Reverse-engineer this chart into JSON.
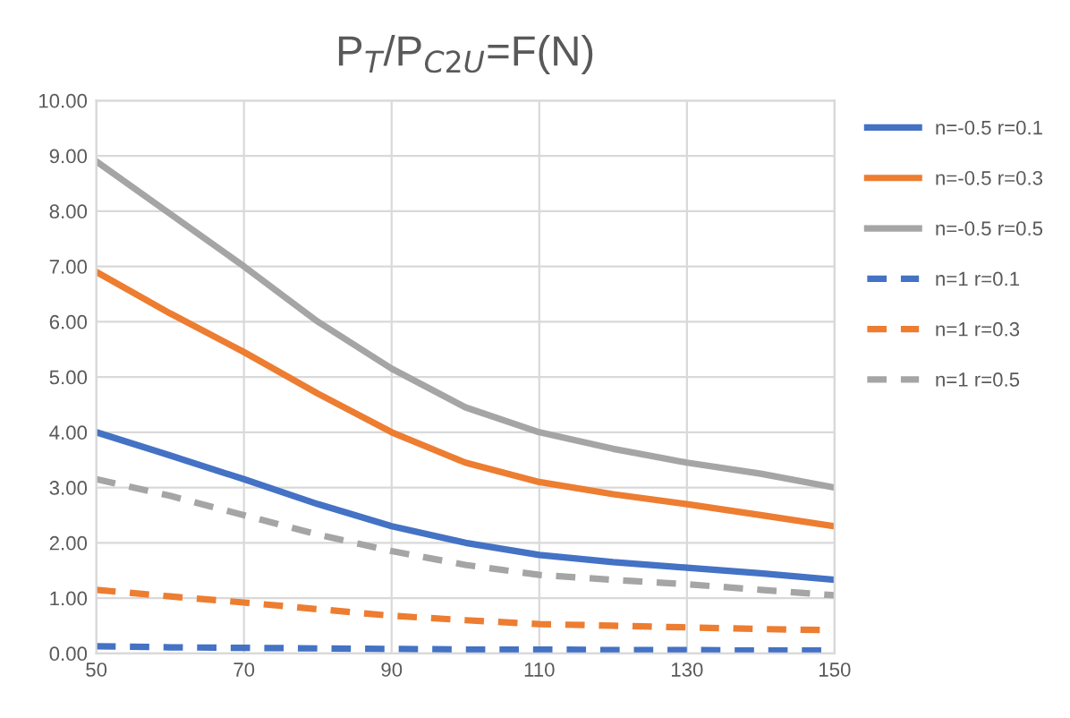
{
  "chart_data": {
    "type": "line",
    "title": "P$_{T}$/P$_{C2U}$=F(N)",
    "x": [
      50,
      60,
      70,
      80,
      90,
      100,
      110,
      120,
      130,
      140,
      150
    ],
    "series": [
      {
        "name": "n=-0.5 r=0.1",
        "color": "#4472c4",
        "line_style": "solid",
        "values": [
          4.0,
          3.58,
          3.15,
          2.7,
          2.3,
          2.0,
          1.78,
          1.65,
          1.55,
          1.45,
          1.33
        ]
      },
      {
        "name": "n=-0.5 r=0.3",
        "color": "#ed7d31",
        "line_style": "solid",
        "values": [
          6.9,
          6.15,
          5.45,
          4.7,
          4.0,
          3.45,
          3.1,
          2.88,
          2.7,
          2.5,
          2.3
        ]
      },
      {
        "name": "n=-0.5 r=0.5",
        "color": "#a5a5a5",
        "line_style": "solid",
        "values": [
          8.9,
          7.95,
          7.0,
          6.0,
          5.15,
          4.45,
          4.0,
          3.7,
          3.45,
          3.25,
          3.0
        ]
      },
      {
        "name": "n=1 r=0.1",
        "color": "#4472c4",
        "line_style": "dashed",
        "values": [
          0.13,
          0.11,
          0.1,
          0.09,
          0.08,
          0.07,
          0.07,
          0.06,
          0.06,
          0.05,
          0.05
        ]
      },
      {
        "name": "n=1 r=0.3",
        "color": "#ed7d31",
        "line_style": "dashed",
        "values": [
          1.15,
          1.03,
          0.92,
          0.8,
          0.68,
          0.6,
          0.53,
          0.5,
          0.47,
          0.44,
          0.42
        ]
      },
      {
        "name": "n=1 r=0.5",
        "color": "#a5a5a5",
        "line_style": "dashed",
        "values": [
          3.15,
          2.85,
          2.5,
          2.15,
          1.85,
          1.6,
          1.42,
          1.33,
          1.25,
          1.15,
          1.05
        ]
      }
    ],
    "xlim": [
      50,
      150
    ],
    "xticks": [
      50,
      70,
      90,
      110,
      130,
      150
    ],
    "ylim": [
      0,
      10
    ],
    "yticks": [
      {
        "value": 0,
        "label": "0.00"
      },
      {
        "value": 1,
        "label": "1.00"
      },
      {
        "value": 2,
        "label": "2.00"
      },
      {
        "value": 3,
        "label": "3.00"
      },
      {
        "value": 4,
        "label": "4.00"
      },
      {
        "value": 5,
        "label": "5.00"
      },
      {
        "value": 6,
        "label": "6.00"
      },
      {
        "value": 7,
        "label": "7.00"
      },
      {
        "value": 8,
        "label": "8.00"
      },
      {
        "value": 9,
        "label": "9.00"
      },
      {
        "value": 10,
        "label": "10.00"
      }
    ],
    "grid": true,
    "legend": "right",
    "marker": "none"
  }
}
